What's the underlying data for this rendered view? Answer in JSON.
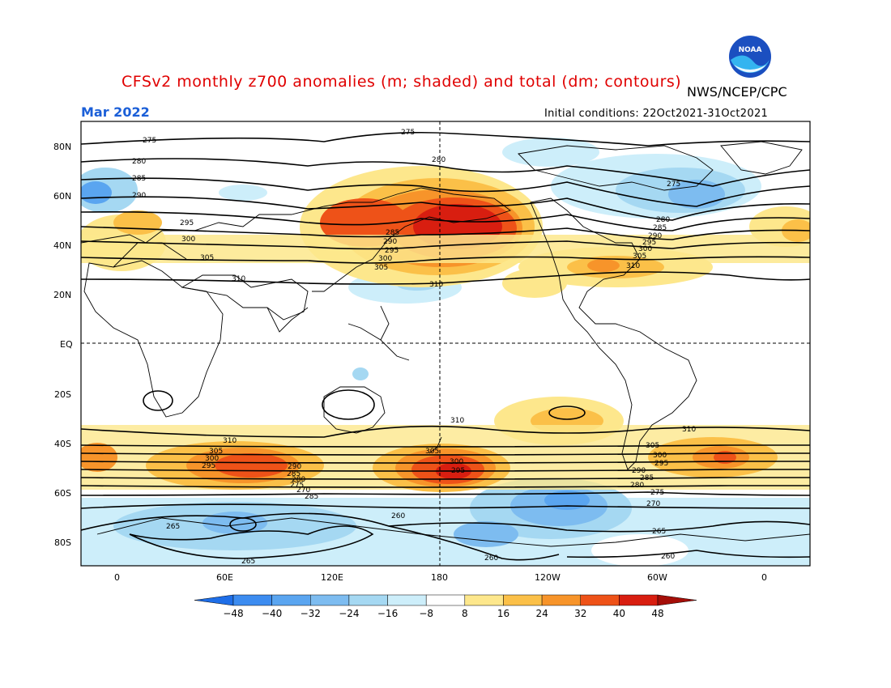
{
  "title": "CFSv2 monthly z700 anomalies (m; shaded) and total (dm; contours)",
  "agency": "NWS/NCEP/CPC",
  "month": "Mar 2022",
  "initial_conditions": "Initial conditions: 22Oct2021-31Oct2021",
  "logo_text": "NOAA",
  "lat_labels": [
    "80N",
    "60N",
    "40N",
    "20N",
    "EQ",
    "20S",
    "40S",
    "60S",
    "80S"
  ],
  "lon_labels": [
    "0",
    "60E",
    "120E",
    "180",
    "120W",
    "60W",
    "0"
  ],
  "colorbar": {
    "labels": [
      "-48",
      "-40",
      "-32",
      "-24",
      "-16",
      "-8",
      "8",
      "16",
      "24",
      "32",
      "40",
      "48"
    ],
    "colors": [
      "#1e6ee8",
      "#3c8cf0",
      "#5aa5f0",
      "#7dbcf0",
      "#a5d8f2",
      "#cdeefa",
      "#ffffff",
      "#fde78c",
      "#fbc048",
      "#f7942a",
      "#ee5218",
      "#d81e10",
      "#a50e08"
    ]
  },
  "contour_labels": [
    "275",
    "280",
    "285",
    "290",
    "295",
    "300",
    "305",
    "310",
    "270",
    "265",
    "260"
  ]
}
